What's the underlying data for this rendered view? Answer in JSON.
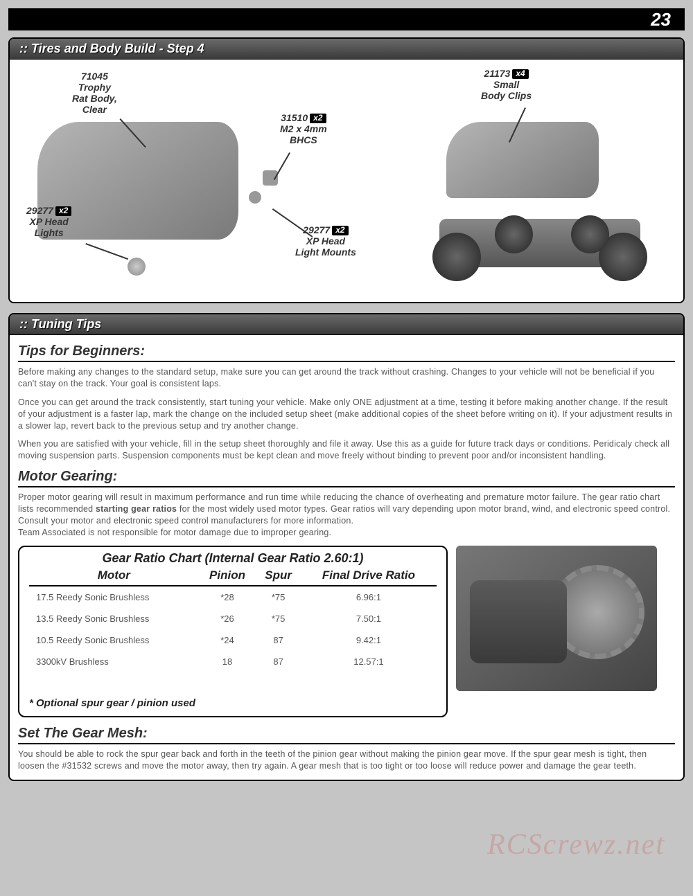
{
  "page_number": "23",
  "section1": {
    "title": ":: Tires and Body Build - Step 4",
    "callouts": {
      "trophy_body": {
        "part": "71045",
        "label": "Trophy\nRat Body,\nClear"
      },
      "bhcs": {
        "part": "31510",
        "qty": "x2",
        "label": "M2 x 4mm\nBHCS"
      },
      "body_clips": {
        "part": "21173",
        "qty": "x4",
        "label": "Small\nBody Clips"
      },
      "head_lights": {
        "part": "29277",
        "qty": "x2",
        "label": "XP Head\nLights"
      },
      "light_mounts": {
        "part": "29277",
        "qty": "x2",
        "label": "XP Head\nLight Mounts"
      }
    }
  },
  "section2": {
    "title": ":: Tuning Tips",
    "beginners_heading": "Tips for Beginners:",
    "beginners_p1": "Before making any changes to the standard setup, make sure you can get around the track without crashing. Changes to your vehicle will not be beneficial if you can't stay on the track. Your goal is consistent laps.",
    "beginners_p2": "Once you can get around the track consistently, start tuning your vehicle. Make only ONE adjustment at a time, testing it before making another change. If the result of your adjustment is a faster lap, mark the change on the included setup sheet (make additional copies of the sheet before writing on it). If your adjustment results in a slower lap, revert back to the previous setup and try another change.",
    "beginners_p3": "When you are satisfied with your vehicle, fill in the setup sheet thoroughly and file it away. Use this as a guide for future track days or conditions. Peridicaly check all moving suspension parts. Suspension components must be kept clean and move freely without binding to prevent poor and/or inconsistent handling.",
    "motor_heading": "Motor Gearing:",
    "motor_p1_a": "Proper motor gearing will result in maximum performance and run time while reducing the chance of overheating and premature motor failure. The gear ratio chart lists recommended ",
    "motor_p1_bold": "starting gear ratios",
    "motor_p1_b": " for the most widely used motor types. Gear ratios will vary depending upon motor brand, wind, and electronic speed control. Consult your motor and electronic speed control manufacturers for more information.",
    "motor_p2": "Team Associated is not responsible for motor damage due to improper gearing.",
    "chart": {
      "title": "Gear Ratio Chart (Internal Gear Ratio 2.60:1)",
      "headers": {
        "motor": "Motor",
        "pinion": "Pinion",
        "spur": "Spur",
        "fdr": "Final Drive Ratio"
      },
      "rows": [
        {
          "motor": "17.5 Reedy Sonic Brushless",
          "pinion": "*28",
          "spur": "*75",
          "fdr": "6.96:1"
        },
        {
          "motor": "13.5 Reedy Sonic Brushless",
          "pinion": "*26",
          "spur": "*75",
          "fdr": "7.50:1"
        },
        {
          "motor": "10.5 Reedy Sonic Brushless",
          "pinion": "*24",
          "spur": "87",
          "fdr": "9.42:1"
        },
        {
          "motor": "3300kV Brushless",
          "pinion": "18",
          "spur": "87",
          "fdr": "12.57:1"
        }
      ],
      "note": "* Optional spur gear / pinion used"
    },
    "mesh_heading": "Set The Gear Mesh:",
    "mesh_p": "You should be able to rock the spur gear back and forth in the teeth of the pinion gear without making the pinion gear move. If the spur gear mesh is tight, then loosen the #31532 screws and move the motor away, then try again. A gear mesh that is too tight or too loose will reduce power and damage the gear teeth."
  },
  "watermark": "RCScrewz.net"
}
